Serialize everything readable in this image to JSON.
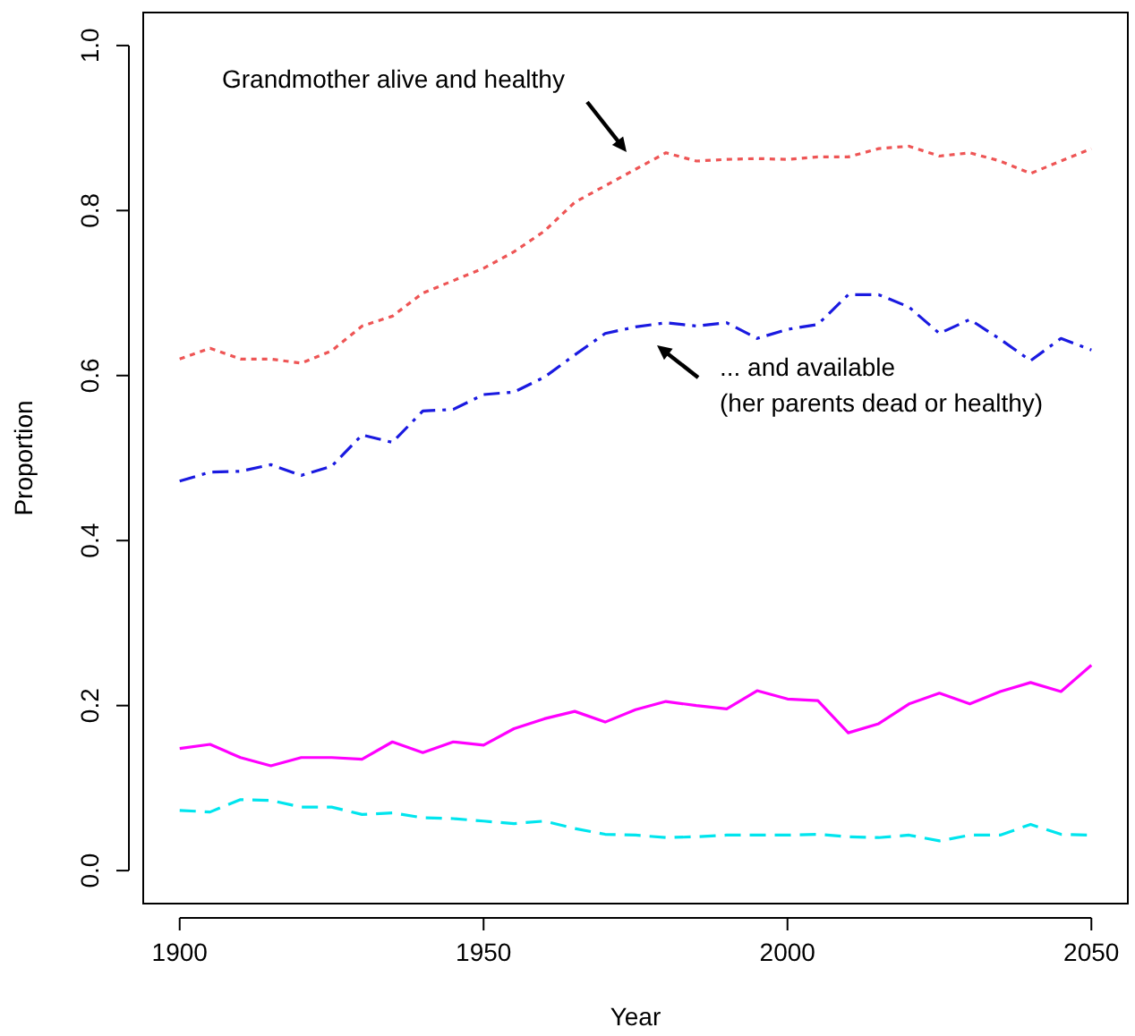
{
  "chart_data": {
    "type": "line",
    "xlabel": "Year",
    "ylabel": "Proportion",
    "x": [
      1900,
      1905,
      1910,
      1915,
      1920,
      1925,
      1930,
      1935,
      1940,
      1945,
      1950,
      1955,
      1960,
      1965,
      1970,
      1975,
      1980,
      1985,
      1990,
      1995,
      2000,
      2005,
      2010,
      2015,
      2020,
      2025,
      2030,
      2035,
      2040,
      2045,
      2050
    ],
    "series": [
      {
        "color": "#ee5555",
        "line_style": "dotted",
        "values": [
          0.62,
          0.633,
          0.62,
          0.62,
          0.615,
          0.63,
          0.66,
          0.672,
          0.7,
          0.715,
          0.73,
          0.75,
          0.775,
          0.81,
          0.83,
          0.85,
          0.87,
          0.86,
          0.862,
          0.863,
          0.862,
          0.865,
          0.865,
          0.875,
          0.878,
          0.866,
          0.87,
          0.86,
          0.845,
          0.86,
          0.875
        ]
      },
      {
        "color": "#1a1ae0",
        "line_style": "dashdot",
        "values": [
          0.472,
          0.483,
          0.484,
          0.492,
          0.479,
          0.49,
          0.528,
          0.519,
          0.557,
          0.559,
          0.577,
          0.58,
          0.598,
          0.625,
          0.651,
          0.659,
          0.664,
          0.66,
          0.664,
          0.645,
          0.656,
          0.662,
          0.698,
          0.698,
          0.683,
          0.651,
          0.668,
          0.644,
          0.618,
          0.645,
          0.631
        ]
      },
      {
        "color": "#ff00ff",
        "line_style": "solid",
        "values": [
          0.148,
          0.153,
          0.137,
          0.127,
          0.137,
          0.137,
          0.135,
          0.156,
          0.143,
          0.156,
          0.152,
          0.172,
          0.184,
          0.193,
          0.18,
          0.195,
          0.205,
          0.2,
          0.196,
          0.218,
          0.208,
          0.206,
          0.167,
          0.178,
          0.202,
          0.215,
          0.202,
          0.217,
          0.228,
          0.217,
          0.249
        ]
      },
      {
        "color": "#00e5ee",
        "line_style": "dashed",
        "values": [
          0.073,
          0.071,
          0.086,
          0.085,
          0.077,
          0.077,
          0.068,
          0.07,
          0.064,
          0.063,
          0.06,
          0.057,
          0.06,
          0.051,
          0.044,
          0.043,
          0.04,
          0.041,
          0.043,
          0.043,
          0.043,
          0.044,
          0.041,
          0.04,
          0.043,
          0.036,
          0.043,
          0.043,
          0.056,
          0.044,
          0.043
        ]
      }
    ],
    "annotations": [
      "Grandmother alive and healthy",
      "... and available\n(her parents dead or healthy)"
    ],
    "xlim": [
      1894,
      2056
    ],
    "ylim": [
      -0.04,
      1.04
    ],
    "xticks": [
      1900,
      1950,
      2000,
      2050
    ],
    "yticks": [
      {
        "value": 0,
        "label": "0.0"
      },
      {
        "value": 0.2,
        "label": "0.2"
      },
      {
        "value": 0.4,
        "label": "0.4"
      },
      {
        "value": 0.6,
        "label": "0.6"
      },
      {
        "value": 0.8,
        "label": "0.8"
      },
      {
        "value": 1,
        "label": "1.0"
      }
    ],
    "grid": false
  }
}
